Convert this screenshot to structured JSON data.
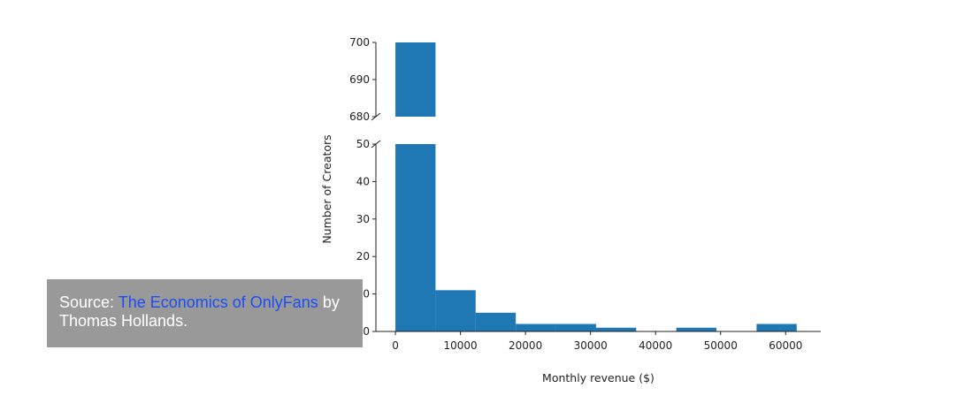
{
  "chart_data": {
    "type": "bar",
    "subtype": "histogram with broken y-axis",
    "xlabel": "Monthly revenue ($)",
    "ylabel": "Number of Creators",
    "bin_edges": [
      0,
      6170,
      12340,
      18510,
      24680,
      30850,
      37020,
      43190,
      49360,
      55530,
      61700
    ],
    "values": [
      700,
      11,
      5,
      2,
      2,
      1,
      0,
      1,
      0,
      2
    ],
    "xlim": [
      -3000,
      65400
    ],
    "xticks": [
      0,
      10000,
      20000,
      30000,
      40000,
      50000,
      60000
    ],
    "ylim_lower": [
      0,
      50
    ],
    "yticks_lower": [
      0,
      10,
      20,
      30,
      40,
      50
    ],
    "ylim_upper": [
      680,
      700
    ],
    "yticks_upper": [
      680,
      690,
      700
    ],
    "grid": false,
    "bar_color": "#1f77b4"
  },
  "caption": {
    "prefix": "Source: ",
    "link_text": "The Economics of OnlyFans",
    "suffix": " by Thomas Hollands.",
    "link_color": "#1d4ef5",
    "background": "#999999"
  }
}
